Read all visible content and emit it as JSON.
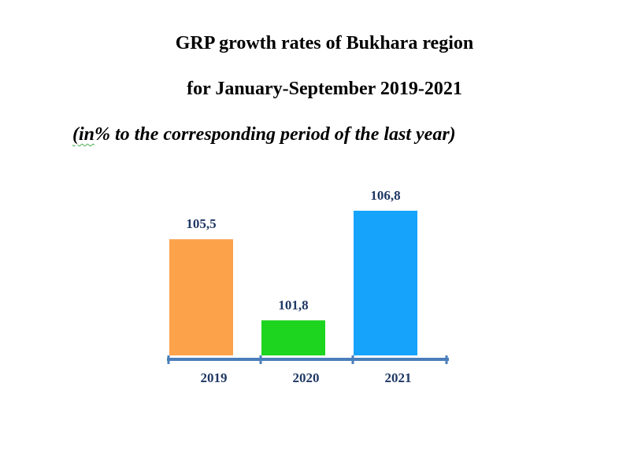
{
  "chart_data": {
    "type": "bar",
    "title": "GRP growth rates of Bukhara region",
    "subtitle_line": "for January-September 2019-2021",
    "note_open": "(in",
    "note_rest": "% to the corresponding period of the last year)",
    "categories": [
      "2019",
      "2020",
      "2021"
    ],
    "values": [
      105.5,
      101.8,
      106.8
    ],
    "value_labels": [
      "105,5",
      "101,8",
      "106,8"
    ],
    "colors": [
      "#fba24b",
      "#1dd41f",
      "#16a3fc"
    ],
    "axis_color": "#4a7ebb",
    "ylim": [
      100.2,
      106.8
    ],
    "xlabel": "",
    "ylabel": "",
    "grid": false
  }
}
